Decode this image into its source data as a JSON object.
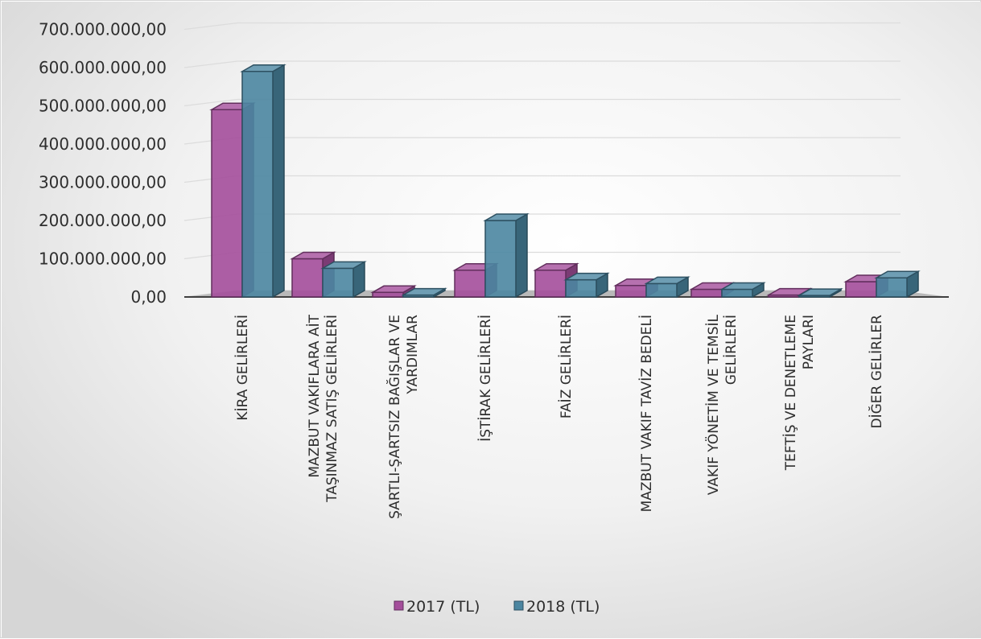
{
  "chart_data": {
    "type": "bar",
    "title": "",
    "xlabel": "",
    "ylabel": "",
    "ylim": [
      0,
      700000000
    ],
    "y_ticks": [
      {
        "value": 0,
        "label": "0,00"
      },
      {
        "value": 100000000,
        "label": "100.000.000,00"
      },
      {
        "value": 200000000,
        "label": "200.000.000,00"
      },
      {
        "value": 300000000,
        "label": "300.000.000,00"
      },
      {
        "value": 400000000,
        "label": "400.000.000,00"
      },
      {
        "value": 500000000,
        "label": "500.000.000,00"
      },
      {
        "value": 600000000,
        "label": "600.000.000,00"
      },
      {
        "value": 700000000,
        "label": "700.000.000,00"
      }
    ],
    "grid": true,
    "legend_position": "bottom",
    "categories": [
      [
        "KİRA GELİRLERİ"
      ],
      [
        "MAZBUT VAKIFLARA AİT",
        "TAŞINMAZ SATIŞ GELİRLERİ"
      ],
      [
        "ŞARTLI-ŞARTSIZ BAĞIŞLAR VE",
        "YARDIMLAR"
      ],
      [
        "İŞTİRAK GELİRLERİ"
      ],
      [
        "FAİZ GELİRLERİ"
      ],
      [
        "MAZBUT VAKIF TAVİZ BEDELİ"
      ],
      [
        "VAKIF YÖNETİM VE TEMSİL",
        "GELİRLERİ"
      ],
      [
        "TEFTİŞ VE DENETLEME",
        "PAYLARI"
      ],
      [
        "DİĞER GELİRLER"
      ]
    ],
    "series": [
      {
        "name": "2017 (TL)",
        "color": "#a44e9b",
        "values": [
          490000000,
          100000000,
          12000000,
          70000000,
          70000000,
          30000000,
          20000000,
          5000000,
          40000000
        ]
      },
      {
        "name": "2018 (TL)",
        "color": "#4b86a1",
        "values": [
          590000000,
          75000000,
          5000000,
          200000000,
          45000000,
          35000000,
          20000000,
          4000000,
          50000000
        ]
      }
    ]
  }
}
